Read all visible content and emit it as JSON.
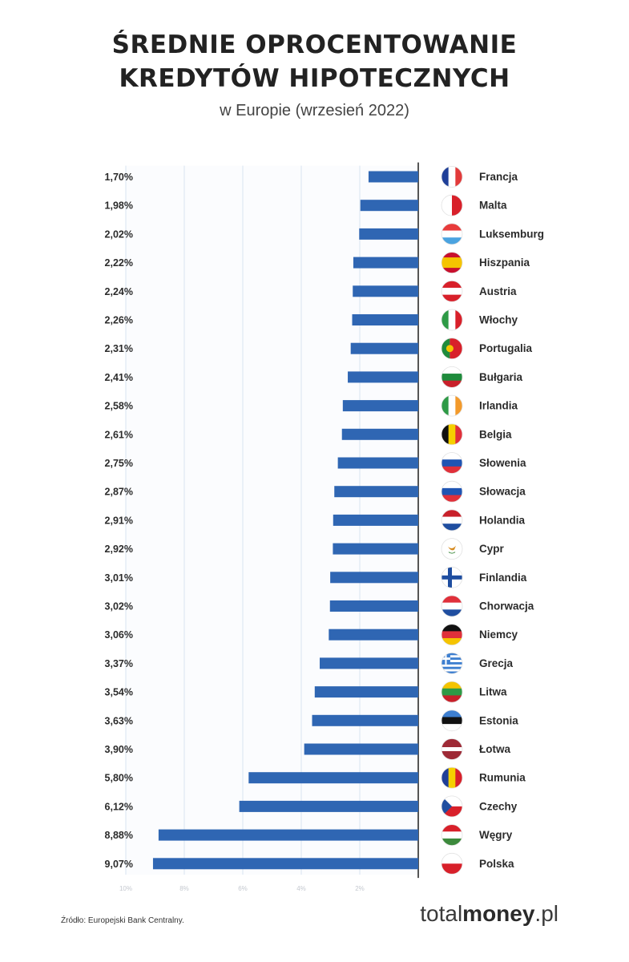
{
  "header": {
    "title_line1": "ŚREDNIE OPROCENTOWANIE",
    "title_line2": "KREDYTÓW HIPOTECZNYCH",
    "subtitle": "w Europie (wrzesień 2022)"
  },
  "footer": {
    "source": "Źródło: Europejski Bank Centralny.",
    "brand_light": "total",
    "brand_bold": "money",
    "brand_tld": ".pl"
  },
  "colors": {
    "bar": "#2f66b3",
    "grid": "#d9e3f0",
    "axis": "#2b2b2b"
  },
  "chart_data": {
    "type": "bar",
    "orientation": "horizontal",
    "title": "ŚREDNIE OPROCENTOWANIE KREDYTÓW HIPOTECZNYCH",
    "subtitle": "w Europie (wrzesień 2022)",
    "xlim": [
      0,
      10
    ],
    "xticks": [
      10,
      8,
      6,
      4,
      2
    ],
    "xtick_labels": [
      "10%",
      "8%",
      "6%",
      "4%",
      "2%"
    ],
    "categories": [
      "Francja",
      "Malta",
      "Luksemburg",
      "Hiszpania",
      "Austria",
      "Włochy",
      "Portugalia",
      "Bułgaria",
      "Irlandia",
      "Belgia",
      "Słowenia",
      "Słowacja",
      "Holandia",
      "Cypr",
      "Finlandia",
      "Chorwacja",
      "Niemcy",
      "Grecja",
      "Litwa",
      "Estonia",
      "Łotwa",
      "Rumunia",
      "Czechy",
      "Węgry",
      "Polska"
    ],
    "values": [
      1.7,
      1.98,
      2.02,
      2.22,
      2.24,
      2.26,
      2.31,
      2.41,
      2.58,
      2.61,
      2.75,
      2.87,
      2.91,
      2.92,
      3.01,
      3.02,
      3.06,
      3.37,
      3.54,
      3.63,
      3.9,
      5.8,
      6.12,
      8.88,
      9.07
    ],
    "value_labels": [
      "1,70%",
      "1,98%",
      "2,02%",
      "2,22%",
      "2,24%",
      "2,26%",
      "2,31%",
      "2,41%",
      "2,58%",
      "2,61%",
      "2,75%",
      "2,87%",
      "2,91%",
      "2,92%",
      "3,01%",
      "3,02%",
      "3,06%",
      "3,37%",
      "3,54%",
      "3,63%",
      "3,90%",
      "5,80%",
      "6,12%",
      "8,88%",
      "9,07%"
    ],
    "flags": [
      {
        "type": "v3",
        "colors": [
          "#1f3f98",
          "#ffffff",
          "#e23a3a"
        ]
      },
      {
        "type": "v2",
        "colors": [
          "#ffffff",
          "#d8202a"
        ]
      },
      {
        "type": "h3",
        "colors": [
          "#e83b3b",
          "#ffffff",
          "#4aa3e0"
        ]
      },
      {
        "type": "h3w",
        "colors": [
          "#c8102e",
          "#f5c400",
          "#c8102e"
        ]
      },
      {
        "type": "h3",
        "colors": [
          "#d8202a",
          "#ffffff",
          "#d8202a"
        ]
      },
      {
        "type": "v3",
        "colors": [
          "#2e9a46",
          "#ffffff",
          "#d8202a"
        ]
      },
      {
        "type": "v2p",
        "colors": [
          "#1f8b3c",
          "#d8202a"
        ]
      },
      {
        "type": "h3",
        "colors": [
          "#ffffff",
          "#1f8b3c",
          "#c8202a"
        ]
      },
      {
        "type": "v3",
        "colors": [
          "#2e9a46",
          "#ffffff",
          "#f39a2b"
        ]
      },
      {
        "type": "v3",
        "colors": [
          "#111111",
          "#f5d000",
          "#e0303a"
        ]
      },
      {
        "type": "h3",
        "colors": [
          "#ffffff",
          "#1f55b3",
          "#e0303a"
        ]
      },
      {
        "type": "h3",
        "colors": [
          "#ffffff",
          "#1f55b3",
          "#e0303a"
        ]
      },
      {
        "type": "h3",
        "colors": [
          "#c8202a",
          "#ffffff",
          "#1f4ea0"
        ]
      },
      {
        "type": "cyprus",
        "colors": [
          "#ffffff",
          "#d68a1f",
          "#3c8a3c"
        ]
      },
      {
        "type": "cross",
        "colors": [
          "#ffffff",
          "#1f4ea0"
        ]
      },
      {
        "type": "h3",
        "colors": [
          "#e0303a",
          "#ffffff",
          "#1f4ea0"
        ]
      },
      {
        "type": "h3",
        "colors": [
          "#111111",
          "#e0303a",
          "#f5c400"
        ]
      },
      {
        "type": "stripes",
        "colors": [
          "#3e7fd0",
          "#ffffff"
        ]
      },
      {
        "type": "h3",
        "colors": [
          "#f5c400",
          "#2e9a46",
          "#c8202a"
        ]
      },
      {
        "type": "h3",
        "colors": [
          "#3e7fd0",
          "#111111",
          "#ffffff"
        ]
      },
      {
        "type": "h3l",
        "colors": [
          "#9e2a36",
          "#ffffff",
          "#9e2a36"
        ]
      },
      {
        "type": "v3",
        "colors": [
          "#1f3f98",
          "#f5d000",
          "#d8202a"
        ]
      },
      {
        "type": "czech",
        "colors": [
          "#ffffff",
          "#d8202a",
          "#1f4ea0"
        ]
      },
      {
        "type": "h3",
        "colors": [
          "#d8202a",
          "#ffffff",
          "#3c8a3c"
        ]
      },
      {
        "type": "h2",
        "colors": [
          "#ffffff",
          "#d8202a"
        ]
      }
    ]
  }
}
